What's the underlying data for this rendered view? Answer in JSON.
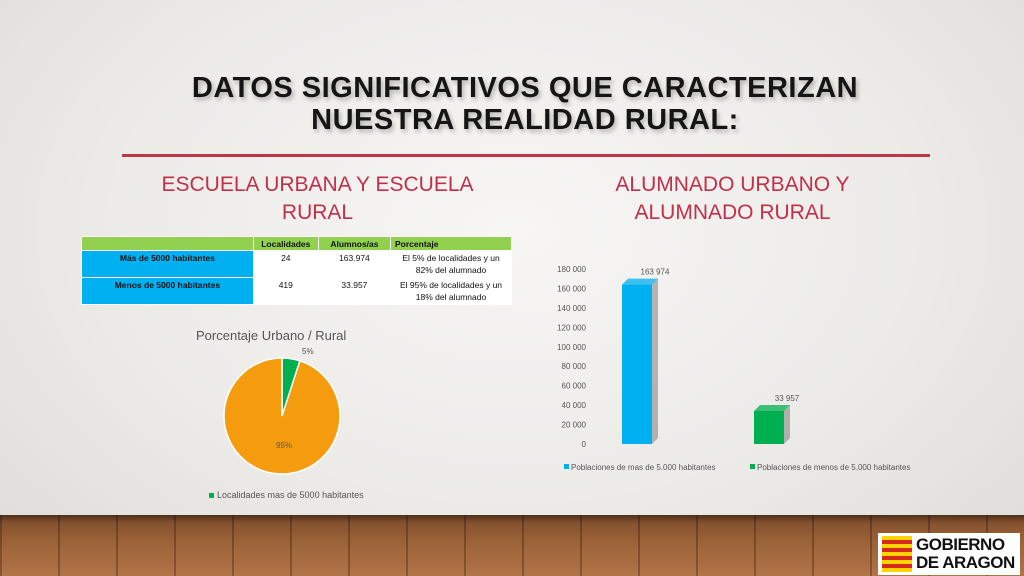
{
  "title": {
    "line1": "DATOS SIGNIFICATIVOS QUE CARACTERIZAN",
    "line2": "NUESTRA REALIDAD RURAL:"
  },
  "left_section": {
    "title_line1": "ESCUELA URBANA Y ESCUELA",
    "title_line2": "RURAL"
  },
  "right_section": {
    "title_line1": "ALUMNADO URBANO Y",
    "title_line2": "ALUMNADO RURAL"
  },
  "table": {
    "headers": [
      "",
      "Localidades",
      "Alumnos/as",
      "Porcentaje"
    ],
    "rows": [
      {
        "label": "Más de 5000 habitantes",
        "localidades": "24",
        "alumnos": "163.974",
        "porcentaje_line1": "El 5% de localidades y un",
        "porcentaje_line2": "82% del alumnado"
      },
      {
        "label": "Menos de 5000 habitantes",
        "localidades": "419",
        "alumnos": "33.957",
        "porcentaje_line1": "El 95% de localidades y un",
        "porcentaje_line2": "18% del alumnado"
      }
    ]
  },
  "colors": {
    "accent": "#c0304a",
    "orange": "#f59c0e",
    "green": "#00b050",
    "blue": "#00b0f0",
    "table_header": "#92d050"
  },
  "chart_data": [
    {
      "type": "pie",
      "title": "Porcentaje Urbano / Rural",
      "slices": [
        {
          "name": "Localidades mas de 5000 habitantes",
          "value": 5,
          "label": "5%",
          "color": "#00b050"
        },
        {
          "name": "",
          "value": 95,
          "label": "95%",
          "color": "#f59c0e"
        }
      ],
      "legend": "Localidades mas de 5000 habitantes"
    },
    {
      "type": "bar",
      "categories": [
        "Poblaciones de mas de 5.000 habitantes",
        "Poblaciones de menos de 5.000 habitantes"
      ],
      "values": [
        163974,
        33957
      ],
      "value_labels": [
        "163 974",
        "33 957"
      ],
      "colors": [
        "#00b0f0",
        "#00b050"
      ],
      "ylim": [
        0,
        180000
      ],
      "y_ticks": [
        "0",
        "20 000",
        "40 000",
        "60 000",
        "80 000",
        "100 000",
        "120 000",
        "140 000",
        "160 000",
        "180 000"
      ],
      "legend_labels": [
        "Poblaciones de mas de 5.000 habitantes",
        "Poblaciones de menos de 5.000 habitantes"
      ],
      "legend_placement": "bottom"
    }
  ],
  "logo": {
    "line1": "GOBIERNO",
    "line2": "DE ARAGON"
  }
}
